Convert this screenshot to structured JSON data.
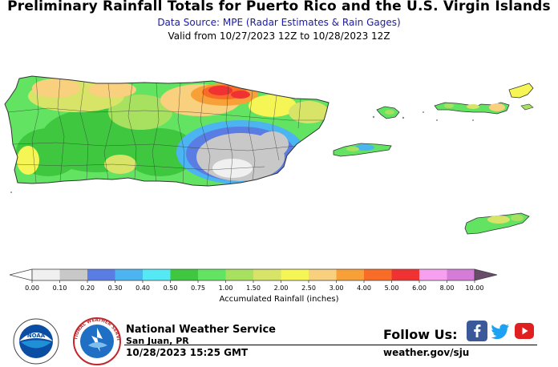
{
  "header": {
    "title": "Preliminary Rainfall Totals for Puerto Rico and the U.S. Virgin Islands",
    "subtitle": "Data Source: MPE (Radar Estimates & Rain Gages)",
    "valid": "Valid from 10/27/2023 12Z to 10/28/2023 12Z"
  },
  "legend": {
    "title": "Accumulated Rainfall (inches)",
    "ticks": [
      "0.00",
      "0.10",
      "0.20",
      "0.30",
      "0.40",
      "0.50",
      "0.75",
      "1.00",
      "1.50",
      "2.00",
      "2.50",
      "3.00",
      "4.00",
      "5.00",
      "6.00",
      "8.00",
      "10.00"
    ],
    "colors": [
      "#f0f0f0",
      "#c8c8c8",
      "#5a7de3",
      "#4cb4f0",
      "#55e8f5",
      "#3fc83f",
      "#62e462",
      "#a8e060",
      "#d8e468",
      "#f5f556",
      "#f8d07e",
      "#f8a038",
      "#f86c28",
      "#f03232",
      "#f8a0f0",
      "#d47cd8",
      "#a050a8"
    ],
    "low_end_color": "#ffffff",
    "high_end_color": "#6a4b6a"
  },
  "footer": {
    "org_name": "National Weather Service",
    "office": "San Juan, PR",
    "timestamp": "10/28/2023 15:25 GMT",
    "follow_label": "Follow Us:",
    "website": "weather.gov/sju",
    "noaa_logo_text": "NOAA",
    "nws_seal_text": "NATIONAL WEATHER SERVICE",
    "social_icons": [
      "facebook-icon",
      "twitter-icon",
      "youtube-icon"
    ],
    "social_colors": [
      "#3b5998",
      "#1da1f2",
      "#e02020"
    ]
  }
}
